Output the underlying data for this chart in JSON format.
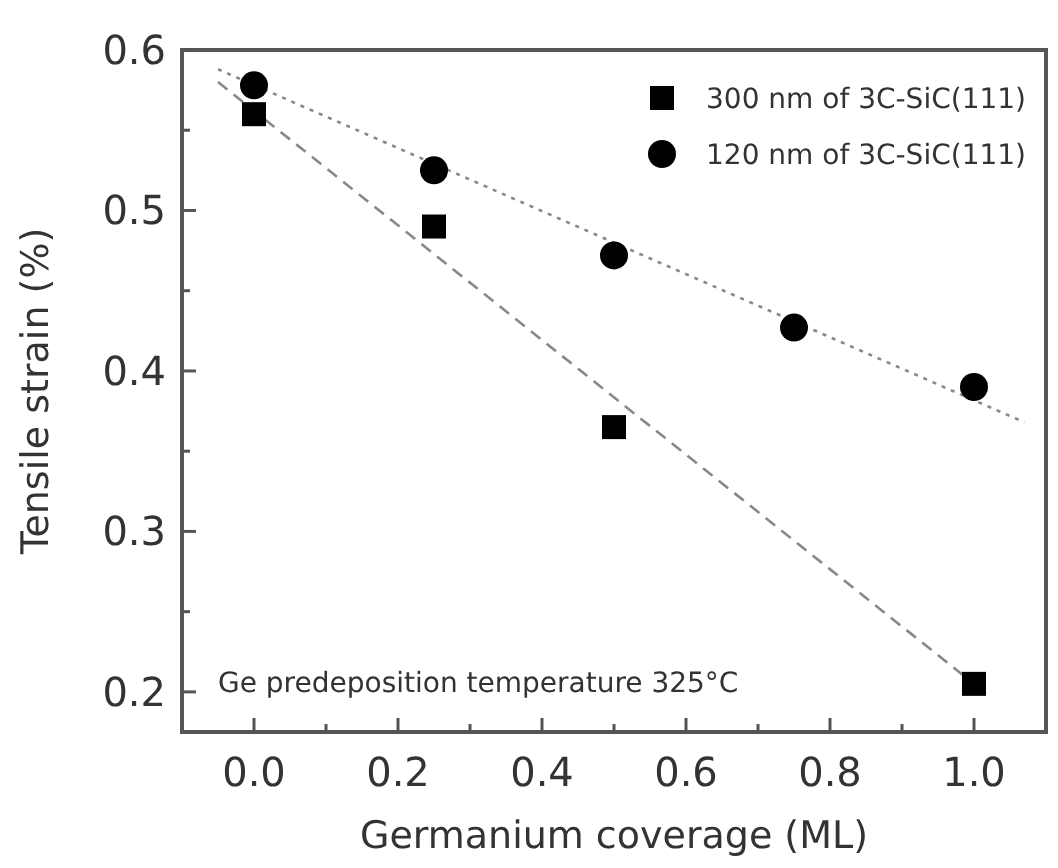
{
  "chart_data": {
    "type": "scatter",
    "xlabel": "Germanium coverage (ML)",
    "ylabel": "Tensile strain (%)",
    "xlim": [
      -0.1,
      1.1
    ],
    "ylim": [
      0.175,
      0.6
    ],
    "xticks": [
      {
        "value": 0,
        "label": "0.0"
      },
      {
        "value": 0.1,
        "label": null
      },
      0.2,
      {
        "value": 0.3,
        "label": null
      },
      0.4,
      {
        "value": 0.5,
        "label": null
      },
      0.6,
      {
        "value": 0.7,
        "label": null
      },
      0.8,
      {
        "value": 0.9,
        "label": null
      },
      {
        "value": 1,
        "label": "1.0"
      }
    ],
    "yticks": [
      0.2,
      {
        "value": 0.25,
        "label": null
      },
      0.3,
      {
        "value": 0.35,
        "label": null
      },
      0.4,
      {
        "value": 0.45,
        "label": null
      },
      0.5,
      {
        "value": 0.55,
        "label": null
      },
      0.6
    ],
    "legend": "top right",
    "grid": false,
    "series": [
      {
        "name": "300 nm of 3C-SiC(111)",
        "color": "#000000",
        "marker": "square",
        "x": [
          0,
          0.25,
          0.5,
          1
        ],
        "values": [
          0.56,
          0.49,
          0.365,
          0.205
        ]
      },
      {
        "name": "120 nm of 3C-SiC(111)",
        "color": "#000000",
        "marker": "circle",
        "x": [
          0,
          0.25,
          0.5,
          0.75,
          1
        ],
        "values": [
          0.578,
          0.525,
          0.472,
          0.427,
          0.39
        ]
      },
      {
        "type": "line",
        "color": "#888888",
        "line_style": "dashed",
        "x": [
          -0.05,
          1
        ],
        "values": [
          0.58,
          0.205
        ]
      },
      {
        "type": "line",
        "color": "#888888",
        "line_style": "dotted",
        "x": [
          -0.05,
          1.07
        ],
        "values": [
          0.588,
          0.368
        ]
      }
    ],
    "annotations": [
      "Ge predeposition temperature 325°C"
    ]
  }
}
